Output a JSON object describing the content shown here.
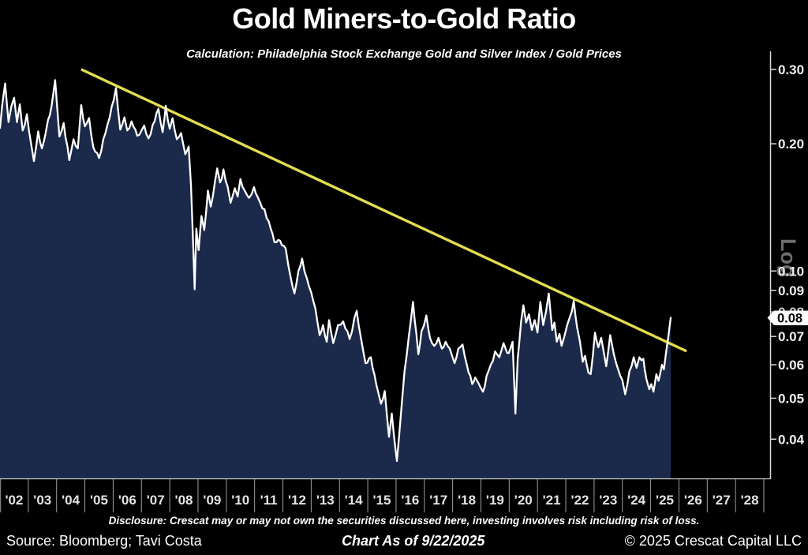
{
  "header": {
    "title": "Gold Miners-to-Gold Ratio",
    "subtitle": "Calculation: Philadelphia Stock Exchange Gold and Silver Index / Gold Prices"
  },
  "footer": {
    "disclosure": "Disclosure: Crescat may or may not own the securities discussed here, investing involves risk including risk of loss.",
    "source": "Source: Bloomberg; Tavi Costa",
    "as_of": "Chart As of 9/22/2025",
    "copyright": "© 2025 Crescat Capital LLC"
  },
  "chart_data": {
    "type": "line",
    "title": "Gold Miners-to-Gold Ratio",
    "y_scale": "log",
    "y_axis_label": "Log",
    "y_tick_labels": [
      "0.30",
      "0.20",
      "0.10",
      "0.09",
      "0.08",
      "0.07",
      "0.06",
      "0.05",
      "0.04"
    ],
    "y_tick_values": [
      0.3,
      0.2,
      0.1,
      0.09,
      0.08,
      0.07,
      0.06,
      0.05,
      0.04
    ],
    "y_view_range": [
      0.0323,
      0.331
    ],
    "x_tick_labels": [
      "'02",
      "'03",
      "'04",
      "'05",
      "'06",
      "'07",
      "'08",
      "'09",
      "'10",
      "'11",
      "'12",
      "'13",
      "'14",
      "'15",
      "'16",
      "'17",
      "'18",
      "'19",
      "'20",
      "'21",
      "'22",
      "'23",
      "'24",
      "'25",
      "'26",
      "'27",
      "'28"
    ],
    "x_range_years": [
      2002,
      2029
    ],
    "last_value_label": "0.08",
    "colors": {
      "background": "#000000",
      "line": "#ffffff",
      "fill": "#1b2a4a",
      "trendline": "#e3dd4f",
      "axis": "#d9d9d9",
      "tick_text": "#f0f0f0",
      "log_label": "#6d6d6d"
    },
    "trendline": {
      "start": [
        2004.87,
        0.3
      ],
      "end": [
        2026.27,
        0.0646
      ]
    },
    "series": [
      {
        "name": "Gold Miners-to-Gold Ratio",
        "points": [
          [
            2002.0,
            0.218
          ],
          [
            2002.08,
            0.248
          ],
          [
            2002.18,
            0.278
          ],
          [
            2002.3,
            0.225
          ],
          [
            2002.4,
            0.245
          ],
          [
            2002.5,
            0.257
          ],
          [
            2002.6,
            0.225
          ],
          [
            2002.7,
            0.248
          ],
          [
            2002.8,
            0.215
          ],
          [
            2002.95,
            0.235
          ],
          [
            2003.1,
            0.2
          ],
          [
            2003.2,
            0.182
          ],
          [
            2003.35,
            0.214
          ],
          [
            2003.48,
            0.195
          ],
          [
            2003.6,
            0.21
          ],
          [
            2003.7,
            0.228
          ],
          [
            2003.82,
            0.245
          ],
          [
            2003.95,
            0.283
          ],
          [
            2004.1,
            0.208
          ],
          [
            2004.25,
            0.224
          ],
          [
            2004.45,
            0.183
          ],
          [
            2004.6,
            0.205
          ],
          [
            2004.75,
            0.195
          ],
          [
            2004.87,
            0.247
          ],
          [
            2005.0,
            0.22
          ],
          [
            2005.15,
            0.23
          ],
          [
            2005.3,
            0.196
          ],
          [
            2005.5,
            0.185
          ],
          [
            2005.65,
            0.205
          ],
          [
            2005.8,
            0.222
          ],
          [
            2005.95,
            0.245
          ],
          [
            2006.1,
            0.271
          ],
          [
            2006.25,
            0.216
          ],
          [
            2006.4,
            0.231
          ],
          [
            2006.5,
            0.215
          ],
          [
            2006.65,
            0.226
          ],
          [
            2006.85,
            0.209
          ],
          [
            2007.0,
            0.215
          ],
          [
            2007.1,
            0.221
          ],
          [
            2007.25,
            0.206
          ],
          [
            2007.4,
            0.222
          ],
          [
            2007.6,
            0.242
          ],
          [
            2007.75,
            0.213
          ],
          [
            2007.86,
            0.246
          ],
          [
            2008.0,
            0.217
          ],
          [
            2008.1,
            0.23
          ],
          [
            2008.25,
            0.205
          ],
          [
            2008.4,
            0.212
          ],
          [
            2008.55,
            0.189
          ],
          [
            2008.67,
            0.197
          ],
          [
            2008.75,
            0.16
          ],
          [
            2008.82,
            0.12
          ],
          [
            2008.88,
            0.0905
          ],
          [
            2008.94,
            0.126
          ],
          [
            2009.02,
            0.112
          ],
          [
            2009.12,
            0.135
          ],
          [
            2009.22,
            0.125
          ],
          [
            2009.35,
            0.155
          ],
          [
            2009.45,
            0.142
          ],
          [
            2009.68,
            0.175
          ],
          [
            2009.78,
            0.162
          ],
          [
            2009.9,
            0.174
          ],
          [
            2010.05,
            0.158
          ],
          [
            2010.15,
            0.145
          ],
          [
            2010.3,
            0.157
          ],
          [
            2010.4,
            0.15
          ],
          [
            2010.5,
            0.165
          ],
          [
            2010.65,
            0.155
          ],
          [
            2010.8,
            0.149
          ],
          [
            2010.98,
            0.158
          ],
          [
            2011.1,
            0.15
          ],
          [
            2011.2,
            0.145
          ],
          [
            2011.35,
            0.14
          ],
          [
            2011.5,
            0.131
          ],
          [
            2011.7,
            0.117
          ],
          [
            2011.9,
            0.118
          ],
          [
            2012.1,
            0.113
          ],
          [
            2012.27,
            0.097
          ],
          [
            2012.41,
            0.0885
          ],
          [
            2012.55,
            0.1
          ],
          [
            2012.68,
            0.107
          ],
          [
            2012.85,
            0.096
          ],
          [
            2013.0,
            0.089
          ],
          [
            2013.15,
            0.0815
          ],
          [
            2013.3,
            0.0705
          ],
          [
            2013.42,
            0.0745
          ],
          [
            2013.55,
            0.068
          ],
          [
            2013.63,
            0.0765
          ],
          [
            2013.78,
            0.0675
          ],
          [
            2013.95,
            0.0745
          ],
          [
            2014.13,
            0.076
          ],
          [
            2014.36,
            0.069
          ],
          [
            2014.61,
            0.0805
          ],
          [
            2014.75,
            0.07
          ],
          [
            2014.92,
            0.0605
          ],
          [
            2015.11,
            0.0625
          ],
          [
            2015.3,
            0.054
          ],
          [
            2015.47,
            0.0485
          ],
          [
            2015.6,
            0.052
          ],
          [
            2015.75,
            0.0405
          ],
          [
            2015.85,
            0.046
          ],
          [
            2016.03,
            0.0355
          ],
          [
            2016.15,
            0.044
          ],
          [
            2016.3,
            0.058
          ],
          [
            2016.45,
            0.07
          ],
          [
            2016.6,
            0.0845
          ],
          [
            2016.72,
            0.071
          ],
          [
            2016.79,
            0.0635
          ],
          [
            2016.9,
            0.072
          ],
          [
            2017.07,
            0.0785
          ],
          [
            2017.2,
            0.0695
          ],
          [
            2017.35,
            0.0665
          ],
          [
            2017.5,
            0.0695
          ],
          [
            2017.62,
            0.0655
          ],
          [
            2017.75,
            0.068
          ],
          [
            2017.9,
            0.0655
          ],
          [
            2018.07,
            0.0605
          ],
          [
            2018.2,
            0.0655
          ],
          [
            2018.35,
            0.067
          ],
          [
            2018.5,
            0.06
          ],
          [
            2018.69,
            0.054
          ],
          [
            2018.8,
            0.056
          ],
          [
            2018.9,
            0.0545
          ],
          [
            2019.07,
            0.0518
          ],
          [
            2019.2,
            0.0565
          ],
          [
            2019.35,
            0.06
          ],
          [
            2019.5,
            0.0645
          ],
          [
            2019.65,
            0.0625
          ],
          [
            2019.8,
            0.0675
          ],
          [
            2019.93,
            0.064
          ],
          [
            2020.04,
            0.0655
          ],
          [
            2020.12,
            0.068
          ],
          [
            2020.22,
            0.046
          ],
          [
            2020.3,
            0.062
          ],
          [
            2020.42,
            0.076
          ],
          [
            2020.5,
            0.083
          ],
          [
            2020.6,
            0.0755
          ],
          [
            2020.7,
            0.079
          ],
          [
            2020.8,
            0.0725
          ],
          [
            2020.9,
            0.0765
          ],
          [
            2021.0,
            0.0715
          ],
          [
            2021.1,
            0.0845
          ],
          [
            2021.2,
            0.0745
          ],
          [
            2021.3,
            0.08
          ],
          [
            2021.4,
            0.0885
          ],
          [
            2021.52,
            0.0725
          ],
          [
            2021.6,
            0.0755
          ],
          [
            2021.68,
            0.068
          ],
          [
            2021.78,
            0.071
          ],
          [
            2021.85,
            0.0665
          ],
          [
            2021.95,
            0.07
          ],
          [
            2022.05,
            0.0745
          ],
          [
            2022.15,
            0.078
          ],
          [
            2022.28,
            0.085
          ],
          [
            2022.4,
            0.0735
          ],
          [
            2022.5,
            0.068
          ],
          [
            2022.6,
            0.061
          ],
          [
            2022.68,
            0.063
          ],
          [
            2022.8,
            0.0575
          ],
          [
            2022.88,
            0.057
          ],
          [
            2023.03,
            0.0715
          ],
          [
            2023.15,
            0.066
          ],
          [
            2023.25,
            0.0695
          ],
          [
            2023.43,
            0.0595
          ],
          [
            2023.57,
            0.0705
          ],
          [
            2023.7,
            0.0635
          ],
          [
            2023.85,
            0.0585
          ],
          [
            2024.0,
            0.0552
          ],
          [
            2024.1,
            0.0511
          ],
          [
            2024.25,
            0.058
          ],
          [
            2024.4,
            0.0625
          ],
          [
            2024.5,
            0.059
          ],
          [
            2024.6,
            0.0625
          ],
          [
            2024.74,
            0.062
          ],
          [
            2024.85,
            0.0555
          ],
          [
            2024.95,
            0.0525
          ],
          [
            2025.02,
            0.054
          ],
          [
            2025.1,
            0.0518
          ],
          [
            2025.2,
            0.057
          ],
          [
            2025.28,
            0.055
          ],
          [
            2025.4,
            0.06
          ],
          [
            2025.47,
            0.0585
          ],
          [
            2025.55,
            0.0645
          ],
          [
            2025.62,
            0.0695
          ],
          [
            2025.71,
            0.0775
          ]
        ]
      }
    ]
  }
}
